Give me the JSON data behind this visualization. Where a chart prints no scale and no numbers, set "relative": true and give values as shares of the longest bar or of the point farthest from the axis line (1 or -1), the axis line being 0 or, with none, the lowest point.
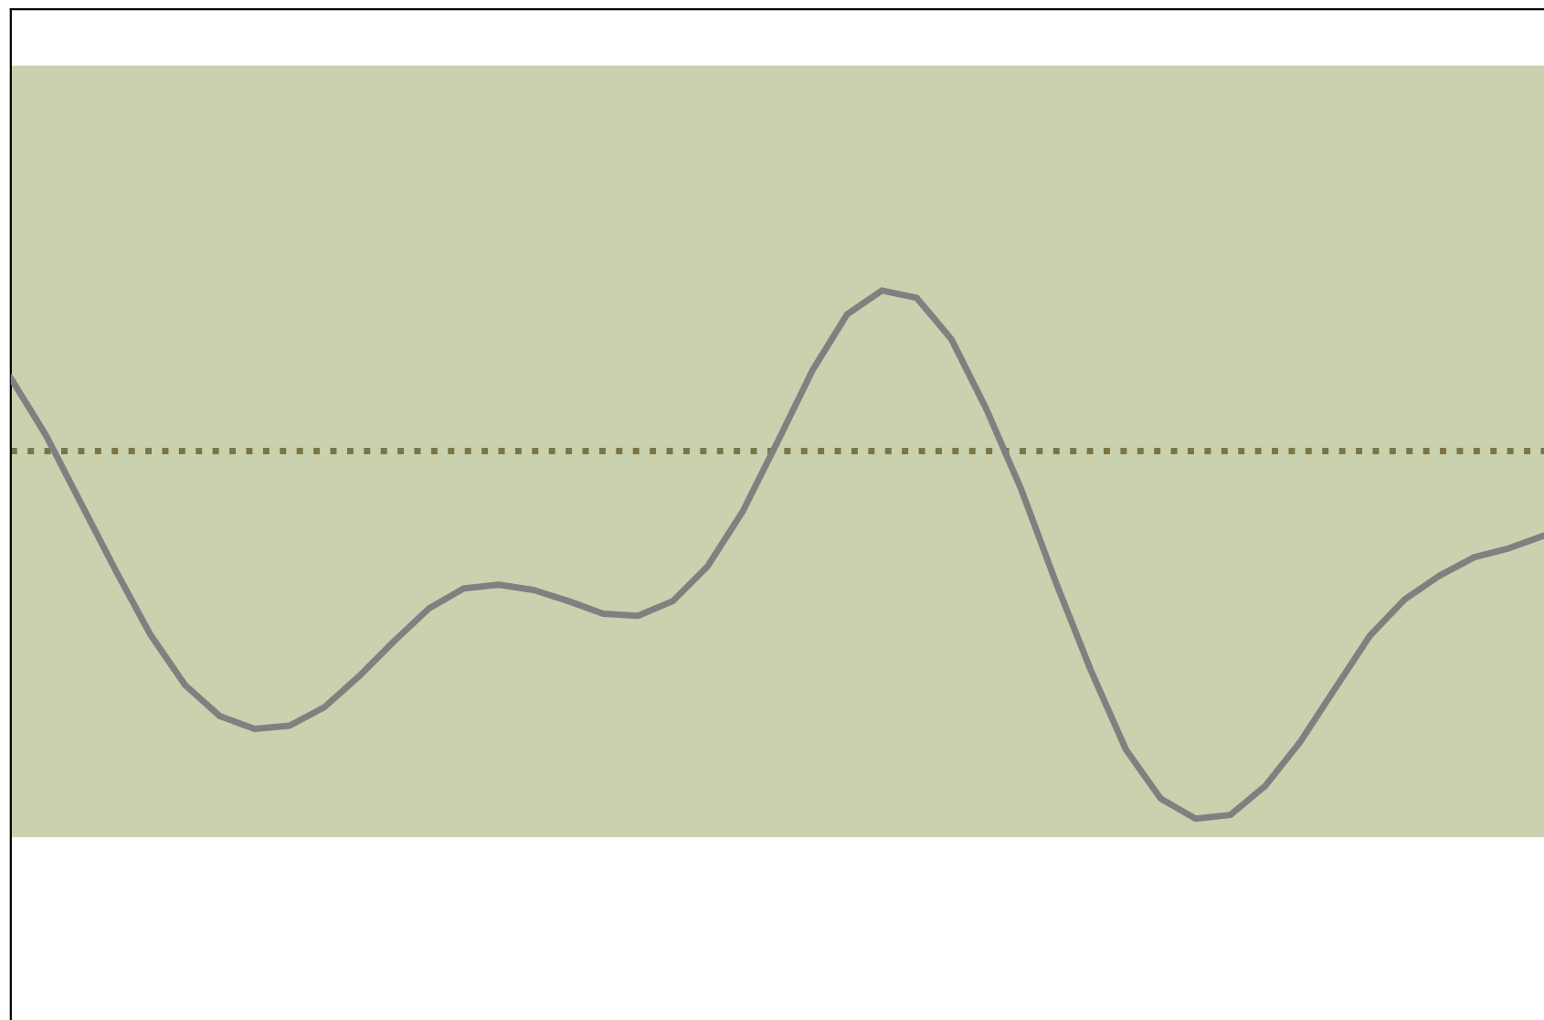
{
  "chart_data": {
    "type": "line",
    "relative": true,
    "categories": [
      null,
      null,
      null,
      null,
      null,
      null,
      null,
      null,
      null,
      null,
      null,
      null,
      null,
      null,
      null,
      null,
      null,
      null,
      null,
      null,
      null,
      null,
      null,
      null,
      null,
      null,
      null,
      null,
      null,
      null,
      null,
      null,
      null,
      null,
      null,
      null,
      null,
      null,
      null,
      null,
      null,
      null,
      null,
      null,
      null
    ],
    "series": [
      {
        "color": "#808080",
        "values": [
          0.834,
          0.727,
          0.599,
          0.471,
          0.349,
          0.253,
          0.194,
          0.17,
          0.176,
          0.211,
          0.27,
          0.336,
          0.398,
          0.436,
          0.443,
          0.433,
          0.412,
          0.388,
          0.384,
          0.412,
          0.478,
          0.581,
          0.713,
          0.848,
          0.955,
          1.0,
          0.986,
          0.907,
          0.775,
          0.623,
          0.446,
          0.28,
          0.131,
          0.038,
          0,
          0.007,
          0.062,
          0.145,
          0.246,
          0.346,
          0.415,
          0.46,
          0.495,
          0.512,
          0.536
        ]
      }
    ],
    "bands": [
      {
        "axis": "y",
        "from": -0.035,
        "to": 1.426,
        "color": "#c9d1ae"
      }
    ],
    "ref_lines": [
      {
        "axis": "y",
        "value": 0.696,
        "color": "#7a7548",
        "line_style": "dotted"
      }
    ],
    "grid": false,
    "legend": false,
    "marker": "none",
    "line_style": "solid"
  }
}
